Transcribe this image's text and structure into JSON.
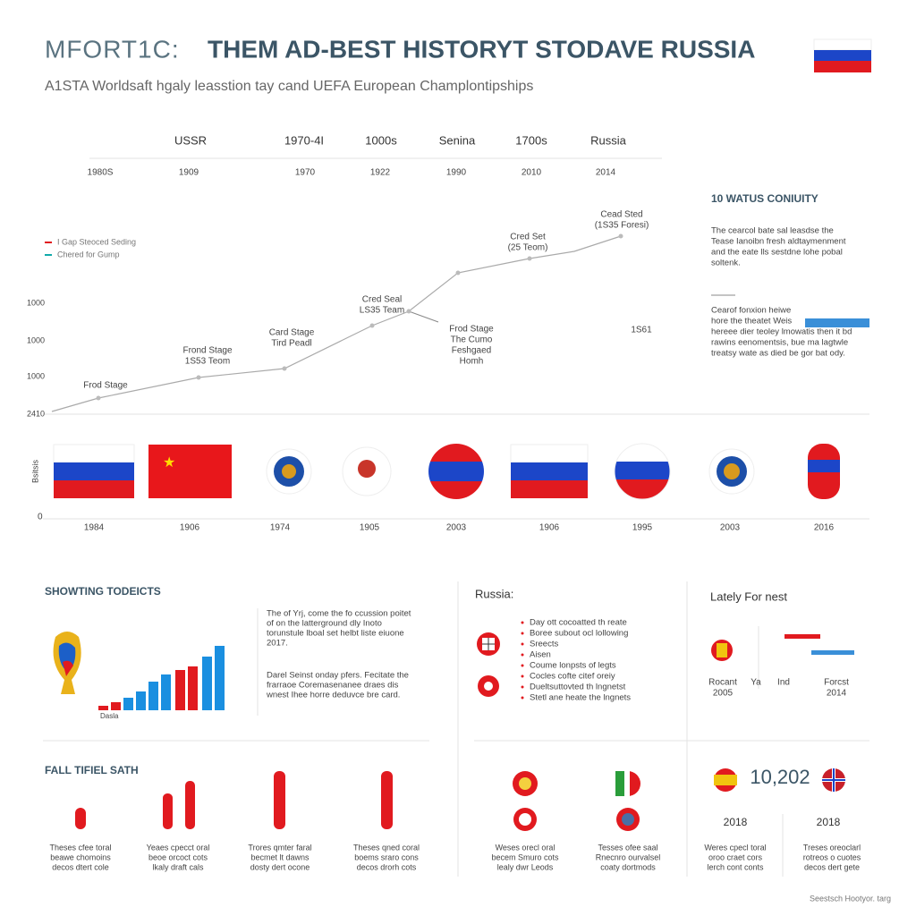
{
  "header": {
    "title_prefix": "MFORT1C:",
    "title": "THEM AD-BEST HISTORYT STODAVE RUSSIA",
    "subtitle": "A1STA Worldsaft hgaly leasstion tay cand UEFA European Champlontipships"
  },
  "timeline": {
    "labels": [
      "USSR",
      "1970-4I",
      "1000s",
      "Senina",
      "1700s",
      "Russia"
    ],
    "years": [
      "1980S",
      "1909",
      "1970",
      "1922",
      "1990",
      "2010",
      "2014"
    ]
  },
  "history_chart": {
    "legend": [
      "I Gap Steoced Seding",
      "Chered for Gump"
    ],
    "axis_labels": [
      "1000",
      "1000",
      "1000",
      "2410"
    ],
    "annotations": [
      [
        "Frod Stage"
      ],
      [
        "Frond Stage",
        "1S53 Teom"
      ],
      [
        "Card Stage",
        "Tird Peadl"
      ],
      [
        "Cred Seal",
        "LS35 Team"
      ],
      [
        "Frod Stage",
        "The Cumo",
        "Feshgaed",
        "Homh"
      ],
      [
        "Cred Set",
        "(25 Teom)"
      ],
      [
        "Cead Sted",
        "(1S35 Foresi)"
      ],
      [
        "1S61"
      ]
    ]
  },
  "side_panel": {
    "title": "10 WATUS CONIUITY",
    "text1": [
      "The cearcol bate sal leasdse the",
      "Tease Ianoibn fresh aldtaymenment",
      "and the eate lls sestdne lohe pobal",
      "soltenk."
    ],
    "text2": [
      "Cearof fonxion heiwe",
      "hore the theatet Weis",
      "hereee dier teoley lmowatis then it bd",
      "rawins eenomentsis, bue ma lagtwle",
      "treatsy wate as died be gor bat ody."
    ]
  },
  "flag_row": {
    "axis_zero": "0",
    "axis_label": "Bsitsis",
    "years": [
      "1984",
      "1906",
      "1974",
      "1905",
      "2003",
      "1906",
      "1995",
      "2003",
      "2016"
    ]
  },
  "sections": {
    "showing": {
      "title": "SHOWTING TODEICTS",
      "bar_label": "Dasla",
      "text1": [
        "The of Yrj, come the fo ccussion poitet",
        "of on the latterground dly Inoto",
        "torunstule lboal set helbt liste eiuone",
        "2017."
      ],
      "text2": [
        "Darel Seinst onday pfers. Fecitate the",
        "frarraoe Coremasenanee draes dis",
        "wnest Ihee horre deduvce bre card."
      ]
    },
    "russia": {
      "title": "Russia:",
      "items": [
        "Day ott cocoatted th reate",
        "Boree subout ocl lollowing",
        "Sreects",
        "Aisen",
        "Coume lonpsts of legts",
        "Cocles cofte citef oreiy",
        "Dueltsuttovted th lngnetst",
        "Stetl ane heate the lngnets"
      ]
    },
    "lately": {
      "title": "Lately For nest",
      "labels": [
        [
          "Rocant",
          "2005"
        ],
        [
          "Ya"
        ],
        [
          "Ind"
        ],
        [
          "Forcst",
          "2014"
        ]
      ]
    },
    "fall": {
      "title": "FALL TIFIEL SATH",
      "captions": [
        [
          "Theses cfee toral",
          "beawe chomoins",
          "decos dtert cole"
        ],
        [
          "Yeaes cpecct oral",
          "beoe orcoct cots",
          "lkaly draft cals"
        ],
        [
          "Trores qmter faral",
          "becmet lt dawns",
          "dosty dert ocone"
        ],
        [
          "Theses qned coral",
          "boems sraro cons",
          "decos drorh cots"
        ]
      ]
    },
    "bottom_mid": {
      "captions": [
        [
          "Weses orecl oral",
          "becem Smuro cots",
          "lealy dwr Leods"
        ],
        [
          "Tesses ofee saal",
          "Rnecnro ourvalsel",
          "coaty dortmods"
        ]
      ]
    },
    "bottom_right": {
      "number": "10,202",
      "years": [
        "2018",
        "2018"
      ],
      "captions": [
        [
          "Weres cpecl toral",
          "oroo craet cors",
          "lerch cont conts"
        ],
        [
          "Treses oreoclarl",
          "rotreos o cuotes",
          "decos dert gete"
        ]
      ]
    }
  },
  "footer": "Seestsch Hootyor. targ"
}
